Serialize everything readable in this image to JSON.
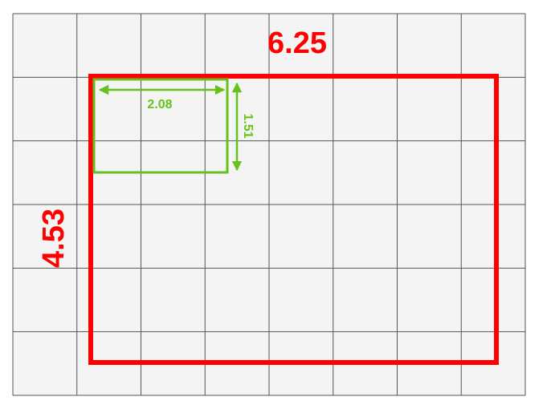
{
  "diagram": {
    "grid": {
      "columns": 8,
      "rows": 6,
      "background": "#f4f4f4",
      "line_color": "#555555"
    },
    "outer_rect": {
      "width_label": "6.25",
      "height_label": "4.53",
      "color": "#ff0000"
    },
    "inner_rect": {
      "width_label": "2.08",
      "height_label": "1.51",
      "color": "#66c21a"
    }
  }
}
